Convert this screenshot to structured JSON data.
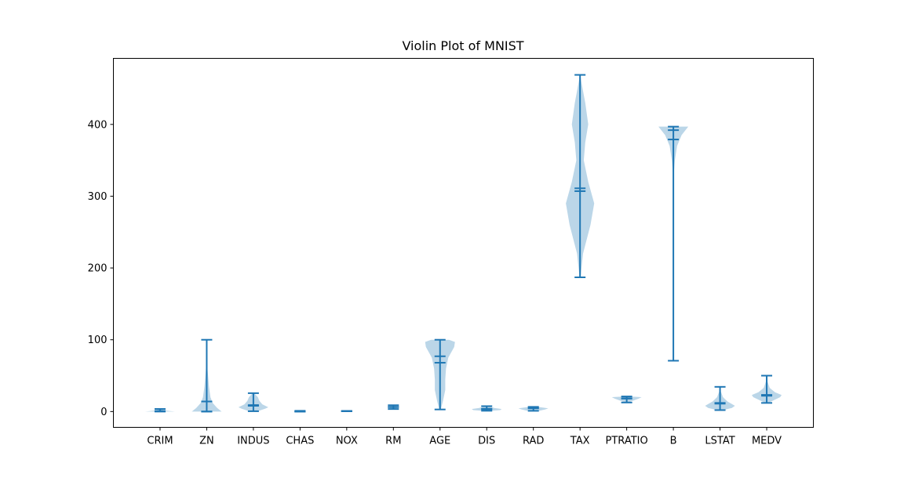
{
  "chart_data": {
    "type": "violin",
    "title": "Violin Plot of MNIST",
    "xlabel": "",
    "ylabel": "",
    "ylim": [
      -22,
      492
    ],
    "yticks": [
      0,
      100,
      200,
      300,
      400
    ],
    "grid": false,
    "fill_color": "#1f77b4",
    "line_color": "#1f77b4",
    "categories": [
      "CRIM",
      "ZN",
      "INDUS",
      "CHAS",
      "NOX",
      "RM",
      "AGE",
      "DIS",
      "RAD",
      "TAX",
      "PTRATIO",
      "B",
      "LSTAT",
      "MEDV"
    ],
    "violins": [
      {
        "min": 0.006,
        "max": 3.6,
        "median": 0.26,
        "mean": 0.8,
        "density": [
          [
            0,
            1.0
          ],
          [
            1,
            0.5
          ],
          [
            2,
            0.2
          ],
          [
            3.6,
            0.05
          ]
        ]
      },
      {
        "min": 0,
        "max": 100,
        "median": 0,
        "mean": 14,
        "density": [
          [
            0,
            1.0
          ],
          [
            5,
            0.7
          ],
          [
            12,
            0.4
          ],
          [
            20,
            0.25
          ],
          [
            35,
            0.15
          ],
          [
            60,
            0.05
          ],
          [
            85,
            0.03
          ],
          [
            100,
            0.02
          ]
        ]
      },
      {
        "min": 0.46,
        "max": 25.6,
        "median": 8,
        "mean": 9,
        "density": [
          [
            0.5,
            0.3
          ],
          [
            4,
            0.8
          ],
          [
            6,
            1.0
          ],
          [
            10,
            0.6
          ],
          [
            15,
            0.4
          ],
          [
            20,
            0.3
          ],
          [
            25.6,
            0.05
          ]
        ]
      },
      {
        "min": 0,
        "max": 1,
        "median": 0,
        "mean": 0.07,
        "density": [
          [
            0,
            0.3
          ],
          [
            0.5,
            0.1
          ],
          [
            1,
            0.05
          ]
        ]
      },
      {
        "min": 0.38,
        "max": 0.87,
        "median": 0.53,
        "mean": 0.55,
        "density": [
          [
            0.38,
            0.3
          ],
          [
            0.6,
            0.3
          ],
          [
            0.87,
            0.1
          ]
        ]
      },
      {
        "min": 3.5,
        "max": 8.8,
        "median": 6.2,
        "mean": 6.3,
        "density": [
          [
            3.5,
            0.05
          ],
          [
            5.5,
            0.3
          ],
          [
            6.2,
            0.4
          ],
          [
            7,
            0.3
          ],
          [
            8.8,
            0.05
          ]
        ]
      },
      {
        "min": 2.9,
        "max": 100,
        "median": 77,
        "mean": 68,
        "density": [
          [
            3,
            0.05
          ],
          [
            15,
            0.2
          ],
          [
            30,
            0.35
          ],
          [
            45,
            0.35
          ],
          [
            60,
            0.4
          ],
          [
            75,
            0.55
          ],
          [
            90,
            0.95
          ],
          [
            97,
            1.0
          ],
          [
            100,
            0.6
          ]
        ]
      },
      {
        "min": 1.1,
        "max": 7.5,
        "median": 3.2,
        "mean": 3.8,
        "density": [
          [
            1.1,
            0.3
          ],
          [
            2,
            0.9
          ],
          [
            3.5,
            1.0
          ],
          [
            5,
            0.5
          ],
          [
            7.5,
            0.1
          ]
        ]
      },
      {
        "min": 1,
        "max": 6.5,
        "median": 5,
        "mean": 4.5,
        "density": [
          [
            1,
            0.4
          ],
          [
            3,
            0.8
          ],
          [
            4.5,
            1.0
          ],
          [
            6.5,
            0.3
          ]
        ]
      },
      {
        "min": 187,
        "max": 469,
        "median": 307,
        "mean": 311,
        "density": [
          [
            187,
            0.03
          ],
          [
            220,
            0.2
          ],
          [
            260,
            0.7
          ],
          [
            290,
            0.95
          ],
          [
            320,
            0.55
          ],
          [
            350,
            0.25
          ],
          [
            375,
            0.35
          ],
          [
            400,
            0.55
          ],
          [
            430,
            0.35
          ],
          [
            460,
            0.08
          ],
          [
            469,
            0.02
          ]
        ]
      },
      {
        "min": 12.6,
        "max": 21,
        "median": 18,
        "mean": 18.5,
        "density": [
          [
            12.6,
            0.1
          ],
          [
            15,
            0.4
          ],
          [
            18,
            0.8
          ],
          [
            20,
            1.0
          ],
          [
            21,
            0.2
          ]
        ]
      },
      {
        "min": 70.8,
        "max": 396.9,
        "median": 392,
        "mean": 379,
        "density": [
          [
            70.8,
            0.01
          ],
          [
            200,
            0.01
          ],
          [
            330,
            0.02
          ],
          [
            350,
            0.1
          ],
          [
            370,
            0.25
          ],
          [
            385,
            0.55
          ],
          [
            396.9,
            1.0
          ]
        ]
      },
      {
        "min": 2,
        "max": 34.4,
        "median": 11,
        "mean": 12,
        "density": [
          [
            2,
            0.2
          ],
          [
            5,
            0.8
          ],
          [
            8,
            1.0
          ],
          [
            14,
            0.5
          ],
          [
            20,
            0.2
          ],
          [
            28,
            0.05
          ],
          [
            34.4,
            0.02
          ]
        ]
      },
      {
        "min": 12,
        "max": 50,
        "median": 22,
        "mean": 23.2,
        "density": [
          [
            12,
            0.1
          ],
          [
            16,
            0.5
          ],
          [
            20,
            0.9
          ],
          [
            23,
            1.0
          ],
          [
            27,
            0.55
          ],
          [
            33,
            0.2
          ],
          [
            42,
            0.05
          ],
          [
            50,
            0.02
          ]
        ]
      }
    ]
  }
}
